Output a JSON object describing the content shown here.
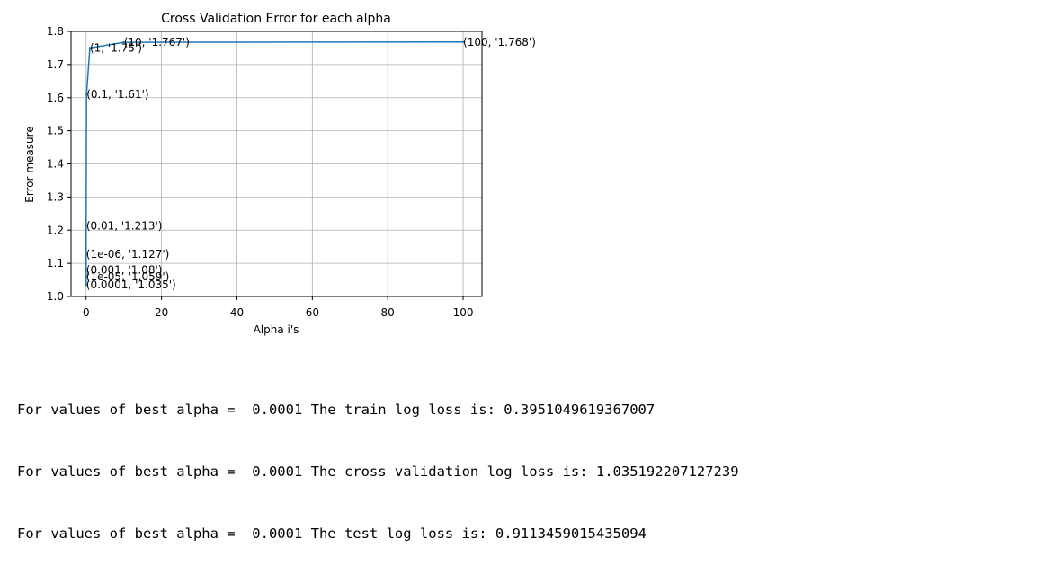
{
  "chart_data": {
    "type": "line",
    "title": "Cross Validation Error for each alpha",
    "xlabel": "Alpha i's",
    "ylabel": "Error measure",
    "xlim": [
      -4,
      105
    ],
    "ylim": [
      1.0,
      1.8
    ],
    "xticks": [
      0,
      20,
      40,
      60,
      80,
      100
    ],
    "yticks": [
      1.0,
      1.1,
      1.2,
      1.3,
      1.4,
      1.5,
      1.6,
      1.7,
      1.8
    ],
    "ytick_labels": [
      "1.0",
      "1.1",
      "1.2",
      "1.3",
      "1.4",
      "1.5",
      "1.6",
      "1.7",
      "1.8"
    ],
    "grid": true,
    "line_color": "#1f77b4",
    "points": [
      {
        "x": 1e-06,
        "y": 1.127,
        "label": "(1e-06, '1.127')"
      },
      {
        "x": 1e-05,
        "y": 1.059,
        "label": "(1e-05, '1.059')"
      },
      {
        "x": 0.0001,
        "y": 1.035,
        "label": "(0.0001, '1.035')"
      },
      {
        "x": 0.001,
        "y": 1.08,
        "label": "(0.001, '1.08')"
      },
      {
        "x": 0.01,
        "y": 1.213,
        "label": "(0.01, '1.213')"
      },
      {
        "x": 0.1,
        "y": 1.61,
        "label": "(0.1, '1.61')"
      },
      {
        "x": 1,
        "y": 1.75,
        "label": "(1, '1.75')"
      },
      {
        "x": 10,
        "y": 1.767,
        "label": "(10, '1.767')"
      },
      {
        "x": 100,
        "y": 1.768,
        "label": "(100, '1.768')"
      }
    ]
  },
  "output": {
    "lines": [
      "For values of best alpha =  0.0001 The train log loss is: 0.3951049619367007",
      "For values of best alpha =  0.0001 The cross validation log loss is: 1.035192207127239",
      "For values of best alpha =  0.0001 The test log loss is: 0.9113459015435094"
    ]
  }
}
